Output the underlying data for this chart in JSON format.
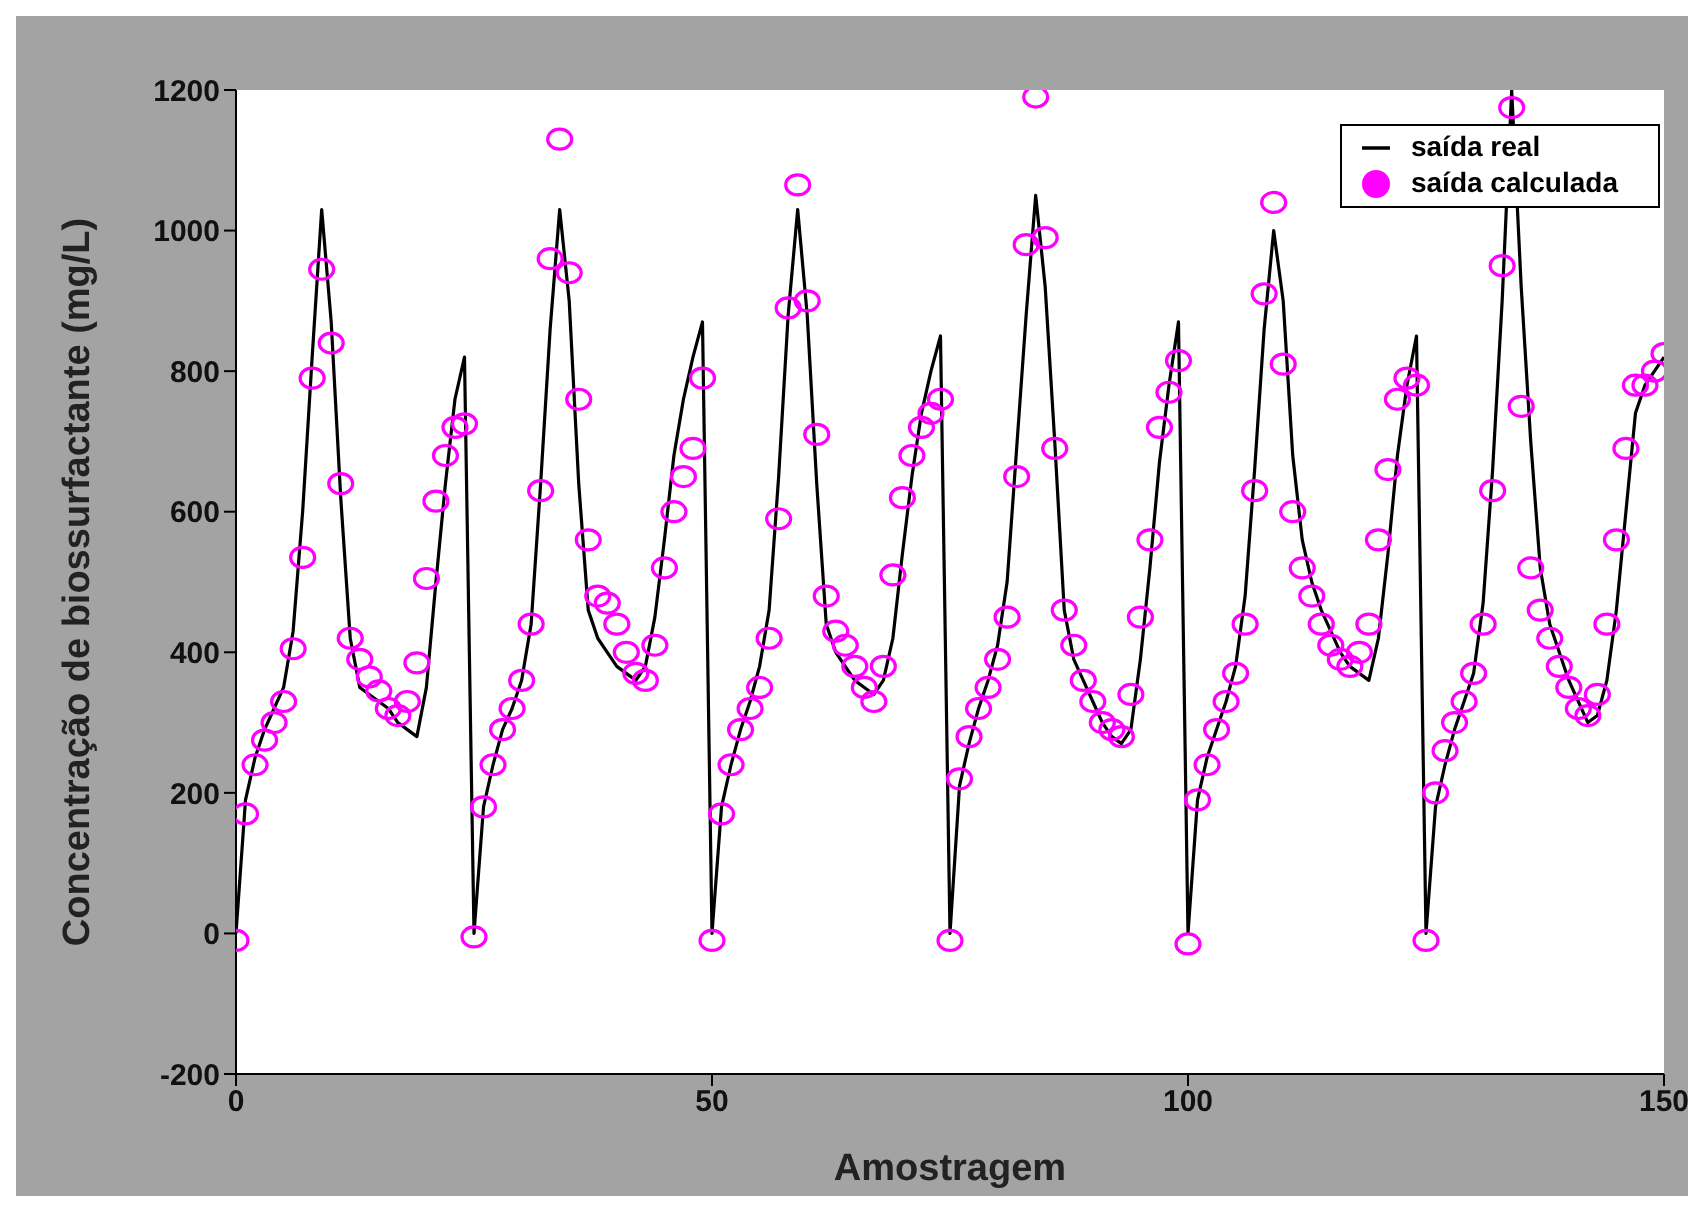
{
  "chart_data": {
    "type": "line",
    "xlabel": "Amostragem",
    "ylabel": "Concentração de biossurfactante (mg/L)",
    "x": [
      0,
      1,
      2,
      3,
      4,
      5,
      6,
      7,
      8,
      9,
      10,
      11,
      12,
      13,
      14,
      15,
      16,
      17,
      18,
      19,
      20,
      21,
      22,
      23,
      24,
      25,
      26,
      27,
      28,
      29,
      30,
      31,
      32,
      33,
      34,
      35,
      36,
      37,
      38,
      39,
      40,
      41,
      42,
      43,
      44,
      45,
      46,
      47,
      48,
      49,
      50,
      51,
      52,
      53,
      54,
      55,
      56,
      57,
      58,
      59,
      60,
      61,
      62,
      63,
      64,
      65,
      66,
      67,
      68,
      69,
      70,
      71,
      72,
      73,
      74,
      75,
      76,
      77,
      78,
      79,
      80,
      81,
      82,
      83,
      84,
      85,
      86,
      87,
      88,
      89,
      90,
      91,
      92,
      93,
      94,
      95,
      96,
      97,
      98,
      99,
      100,
      101,
      102,
      103,
      104,
      105,
      106,
      107,
      108,
      109,
      110,
      111,
      112,
      113,
      114,
      115,
      116,
      117,
      118,
      119,
      120,
      121,
      122,
      123,
      124,
      125,
      126,
      127,
      128,
      129,
      130,
      131,
      132,
      133,
      134,
      135,
      136,
      137,
      138,
      139,
      140,
      141,
      142,
      143,
      144,
      145,
      146,
      147,
      148,
      149,
      150
    ],
    "series": [
      {
        "name": "saída real",
        "type": "line",
        "color": "#000000",
        "marker": "none",
        "values": [
          0,
          190,
          250,
          290,
          320,
          350,
          430,
          600,
          820,
          1030,
          870,
          620,
          420,
          350,
          340,
          330,
          320,
          300,
          290,
          280,
          350,
          500,
          640,
          760,
          820,
          0,
          180,
          240,
          290,
          320,
          360,
          440,
          640,
          860,
          1030,
          900,
          640,
          460,
          420,
          400,
          380,
          370,
          360,
          380,
          450,
          560,
          680,
          760,
          820,
          870,
          0,
          180,
          240,
          290,
          330,
          380,
          460,
          650,
          880,
          1030,
          880,
          640,
          440,
          400,
          380,
          360,
          350,
          340,
          360,
          420,
          540,
          650,
          740,
          800,
          850,
          0,
          210,
          270,
          320,
          360,
          410,
          500,
          690,
          880,
          1050,
          920,
          700,
          460,
          390,
          360,
          330,
          300,
          280,
          270,
          290,
          390,
          520,
          670,
          780,
          870,
          0,
          190,
          250,
          290,
          330,
          380,
          480,
          660,
          860,
          1000,
          900,
          680,
          560,
          500,
          460,
          430,
          400,
          380,
          370,
          360,
          420,
          540,
          680,
          780,
          850,
          0,
          180,
          240,
          290,
          330,
          370,
          470,
          660,
          900,
          1200,
          920,
          700,
          520,
          440,
          400,
          360,
          330,
          300,
          310,
          360,
          460,
          600,
          740,
          780,
          800,
          820
        ]
      },
      {
        "name": "saída calculada",
        "type": "scatter",
        "color": "#ff00ff",
        "marker": "circle",
        "values": [
          -10,
          170,
          240,
          275,
          300,
          330,
          405,
          535,
          790,
          945,
          840,
          640,
          420,
          390,
          365,
          345,
          320,
          310,
          330,
          385,
          505,
          615,
          680,
          720,
          725,
          -5,
          180,
          240,
          290,
          320,
          360,
          440,
          630,
          960,
          1130,
          940,
          760,
          560,
          480,
          470,
          440,
          400,
          370,
          360,
          410,
          520,
          600,
          650,
          690,
          790,
          -10,
          170,
          240,
          290,
          320,
          350,
          420,
          590,
          890,
          1065,
          900,
          710,
          480,
          430,
          410,
          380,
          350,
          330,
          380,
          510,
          620,
          680,
          720,
          740,
          760,
          -10,
          220,
          280,
          320,
          350,
          390,
          450,
          650,
          980,
          1190,
          990,
          690,
          460,
          410,
          360,
          330,
          300,
          290,
          280,
          340,
          450,
          560,
          720,
          770,
          815,
          -15,
          190,
          240,
          290,
          330,
          370,
          440,
          630,
          910,
          1040,
          810,
          600,
          520,
          480,
          440,
          410,
          390,
          380,
          400,
          440,
          560,
          660,
          760,
          790,
          780,
          -10,
          200,
          260,
          300,
          330,
          370,
          440,
          630,
          950,
          1175,
          750,
          520,
          460,
          420,
          380,
          350,
          320,
          310,
          340,
          440,
          560,
          690,
          780,
          780,
          800,
          825
        ]
      }
    ],
    "xlim": [
      0,
      150
    ],
    "xticks": [
      0,
      50,
      100,
      150
    ],
    "ylim": [
      -200,
      1200
    ],
    "yticks": [
      -200,
      0,
      200,
      400,
      600,
      800,
      1000,
      1200
    ],
    "grid": false,
    "legend": "top right"
  }
}
